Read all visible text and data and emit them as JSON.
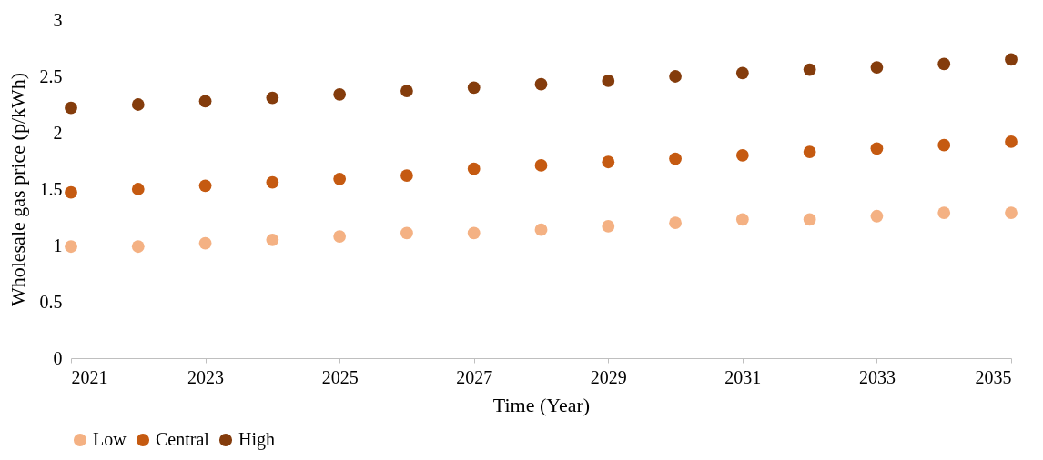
{
  "chart_data": {
    "type": "scatter",
    "xlabel": "Time (Year)",
    "ylabel": "Wholesale gas price (p/kWh)",
    "x": [
      2021,
      2022,
      2023,
      2024,
      2025,
      2026,
      2027,
      2028,
      2029,
      2030,
      2031,
      2032,
      2033,
      2034,
      2035
    ],
    "series": [
      {
        "name": "Low",
        "color": "#f4b183",
        "values": [
          0.99,
          0.99,
          1.02,
          1.05,
          1.08,
          1.11,
          1.11,
          1.14,
          1.17,
          1.2,
          1.23,
          1.23,
          1.26,
          1.29,
          1.29
        ]
      },
      {
        "name": "Central",
        "color": "#c55a11",
        "values": [
          1.47,
          1.5,
          1.53,
          1.56,
          1.59,
          1.62,
          1.68,
          1.71,
          1.74,
          1.77,
          1.8,
          1.83,
          1.86,
          1.89,
          1.92
        ]
      },
      {
        "name": "High",
        "color": "#843c0c",
        "values": [
          2.22,
          2.25,
          2.28,
          2.31,
          2.34,
          2.37,
          2.4,
          2.43,
          2.46,
          2.5,
          2.53,
          2.56,
          2.58,
          2.61,
          2.65
        ]
      }
    ],
    "xlim": [
      2021,
      2035
    ],
    "xticks": [
      2021,
      2023,
      2025,
      2027,
      2029,
      2031,
      2033,
      2035
    ],
    "ylim": [
      0,
      3
    ],
    "yticks": [
      0,
      0.5,
      1,
      1.5,
      2,
      2.5,
      3
    ],
    "grid": false,
    "legend": "bottom",
    "marker": "circle"
  }
}
